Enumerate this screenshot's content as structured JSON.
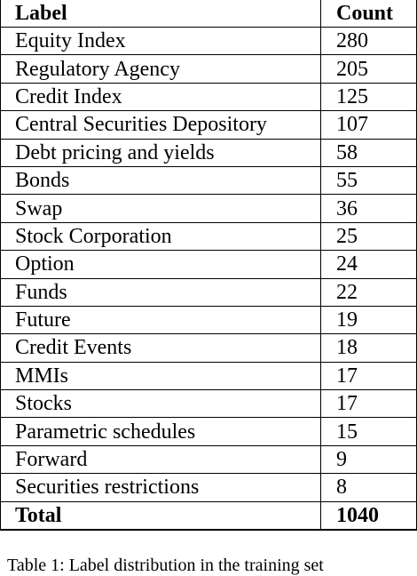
{
  "table": {
    "headers": [
      "Label",
      "Count"
    ],
    "rows": [
      {
        "label": "Equity Index",
        "count": "280"
      },
      {
        "label": "Regulatory Agency",
        "count": "205"
      },
      {
        "label": "Credit Index",
        "count": "125"
      },
      {
        "label": "Central Securities Depository",
        "count": "107"
      },
      {
        "label": "Debt pricing and yields",
        "count": "58"
      },
      {
        "label": "Bonds",
        "count": "55"
      },
      {
        "label": "Swap",
        "count": "36"
      },
      {
        "label": "Stock Corporation",
        "count": "25"
      },
      {
        "label": "Option",
        "count": "24"
      },
      {
        "label": "Funds",
        "count": "22"
      },
      {
        "label": "Future",
        "count": "19"
      },
      {
        "label": "Credit Events",
        "count": "18"
      },
      {
        "label": "MMIs",
        "count": "17"
      },
      {
        "label": "Stocks",
        "count": "17"
      },
      {
        "label": "Parametric schedules",
        "count": "15"
      },
      {
        "label": "Forward",
        "count": "9"
      },
      {
        "label": "Securities restrictions",
        "count": "8"
      }
    ],
    "total": {
      "label": "Total",
      "count": "1040"
    }
  },
  "caption": "Table 1: Label distribution in the training set"
}
